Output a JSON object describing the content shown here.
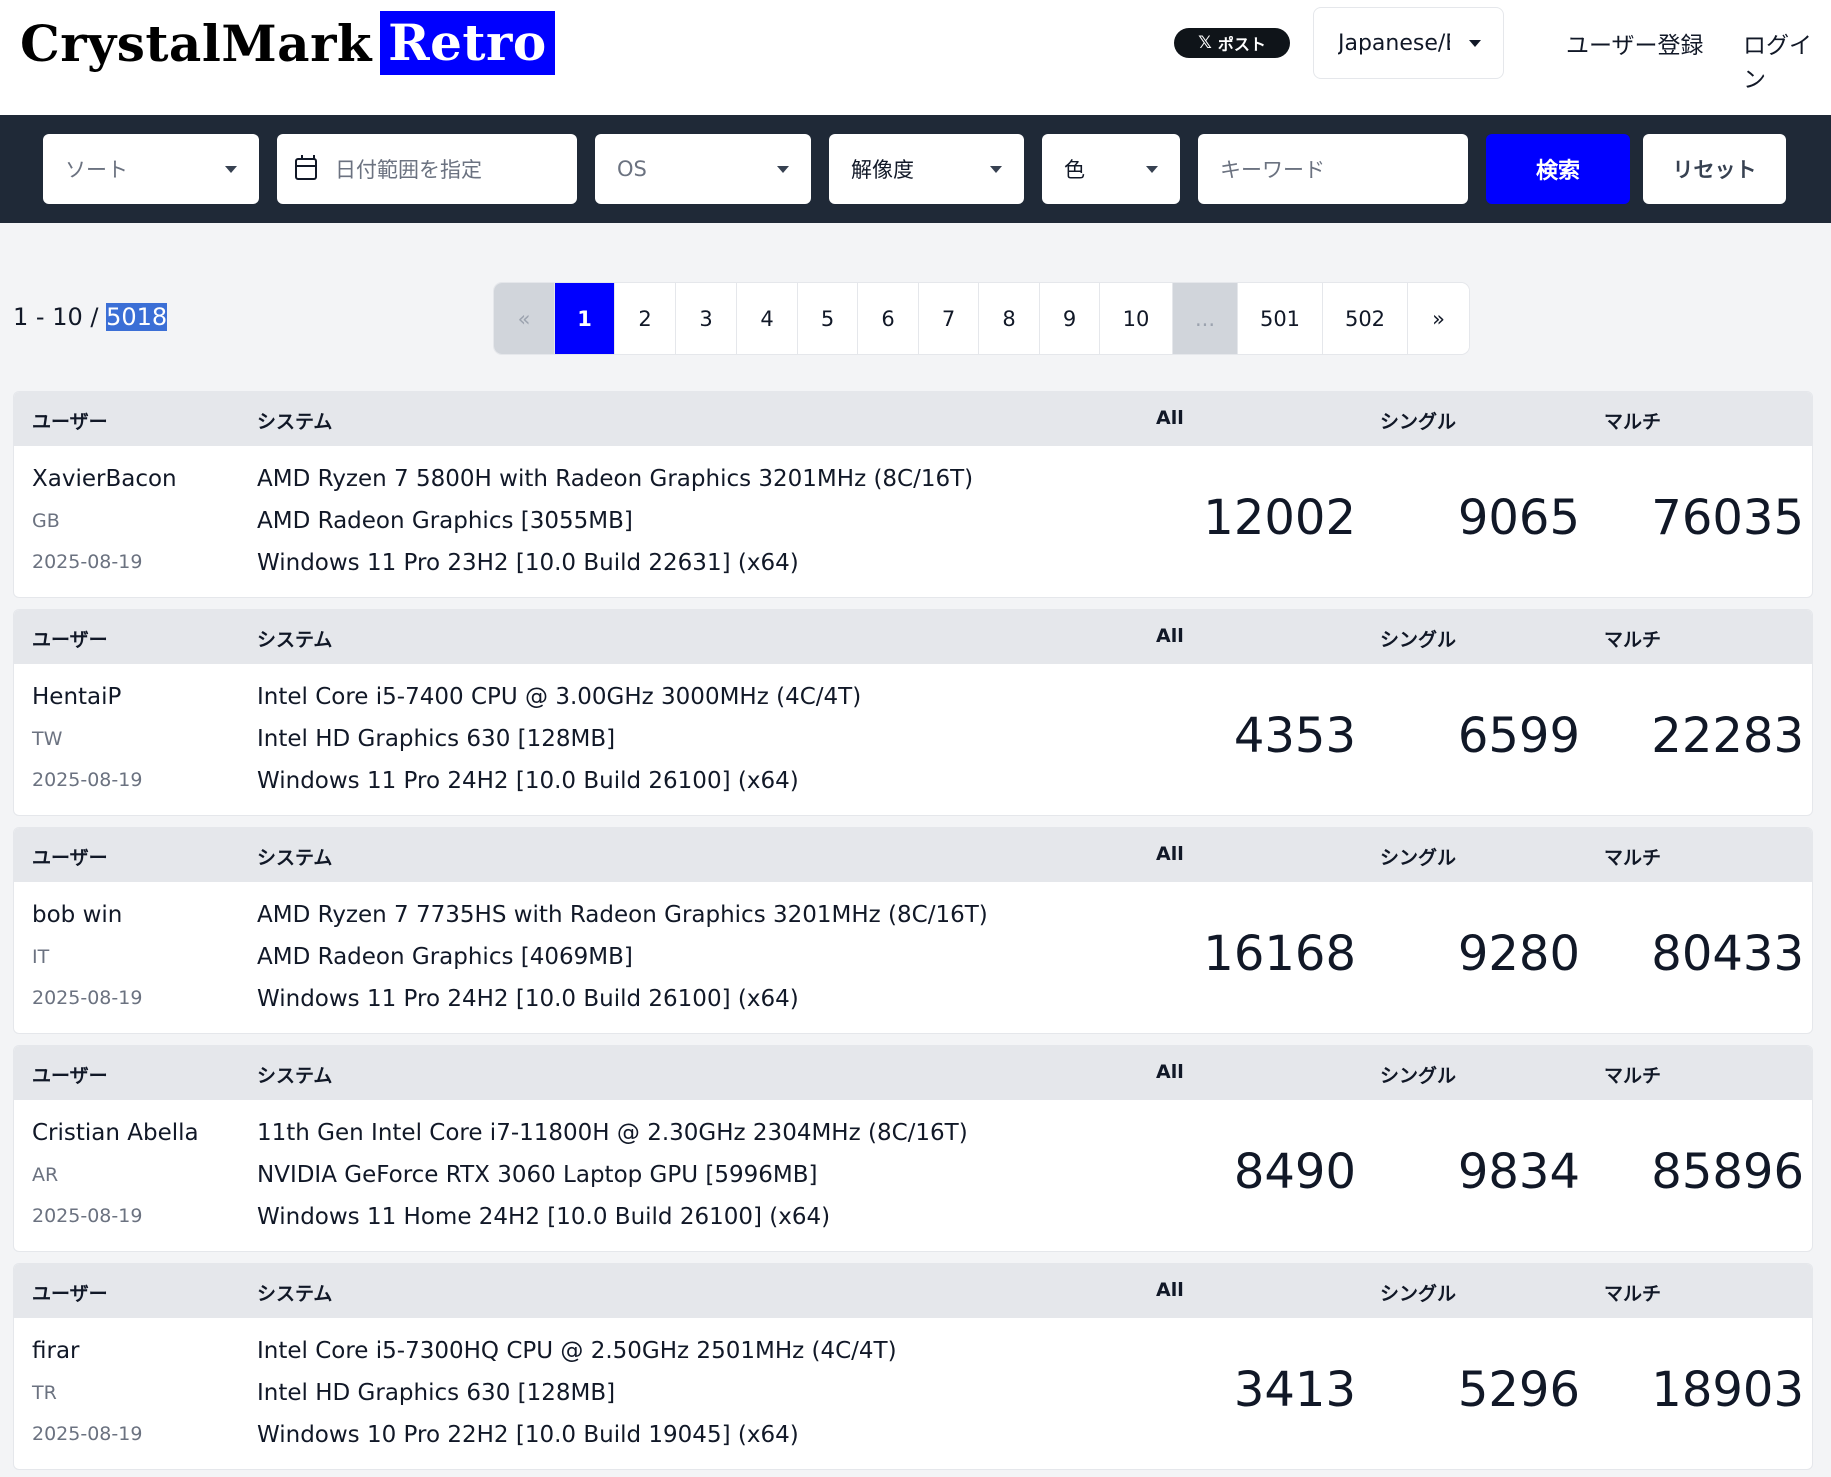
{
  "header": {
    "logo_part1": "CrystalMark",
    "logo_part2": "Retro",
    "x_post_icon": "x-icon",
    "x_post_label": "ポスト",
    "language": "Japanese/English",
    "register": "ユーザー登録",
    "login": "ログイン"
  },
  "filters": {
    "sort": "ソート",
    "date_range": "日付範囲を指定",
    "os": "OS",
    "resolution": "解像度",
    "color": "色",
    "keyword_placeholder": "キーワード",
    "search": "検索",
    "reset": "リセット"
  },
  "results": {
    "range": "1 - 10 / ",
    "total": "5018"
  },
  "pagination": {
    "prev": "«",
    "pages": [
      "1",
      "2",
      "3",
      "4",
      "5",
      "6",
      "7",
      "8",
      "9",
      "10"
    ],
    "ellipsis": "...",
    "last_pages": [
      "501",
      "502"
    ],
    "next": "»",
    "current": "1"
  },
  "columns": {
    "user": "ユーザー",
    "system": "システム",
    "all": "All",
    "single": "シングル",
    "multi": "マルチ"
  },
  "entries": [
    {
      "user": "XavierBacon",
      "country": "GB",
      "date": "2025-08-19",
      "cpu": "AMD Ryzen 7 5800H with Radeon Graphics 3201MHz (8C/16T)",
      "gpu": "AMD Radeon Graphics [3055MB]",
      "os": "Windows 11 Pro 23H2 [10.0 Build 22631] (x64)",
      "all": "12002",
      "single": "9065",
      "multi": "76035"
    },
    {
      "user": "HentaiP",
      "country": "TW",
      "date": "2025-08-19",
      "cpu": "Intel Core i5-7400 CPU @ 3.00GHz 3000MHz (4C/4T)",
      "gpu": "Intel HD Graphics 630 [128MB]",
      "os": "Windows 11 Pro 24H2 [10.0 Build 26100] (x64)",
      "all": "4353",
      "single": "6599",
      "multi": "22283"
    },
    {
      "user": "bob win",
      "country": "IT",
      "date": "2025-08-19",
      "cpu": "AMD Ryzen 7 7735HS with Radeon Graphics 3201MHz (8C/16T)",
      "gpu": "AMD Radeon Graphics [4069MB]",
      "os": "Windows 11 Pro 24H2 [10.0 Build 26100] (x64)",
      "all": "16168",
      "single": "9280",
      "multi": "80433"
    },
    {
      "user": "Cristian Abella",
      "country": "AR",
      "date": "2025-08-19",
      "cpu": "11th Gen Intel Core i7-11800H @ 2.30GHz 2304MHz (8C/16T)",
      "gpu": "NVIDIA GeForce RTX 3060 Laptop GPU [5996MB]",
      "os": "Windows 11 Home 24H2 [10.0 Build 26100] (x64)",
      "all": "8490",
      "single": "9834",
      "multi": "85896"
    },
    {
      "user": "firar",
      "country": "TR",
      "date": "2025-08-19",
      "cpu": "Intel Core i5-7300HQ CPU @ 2.50GHz 2501MHz (4C/4T)",
      "gpu": "Intel HD Graphics 630 [128MB]",
      "os": "Windows 10 Pro 22H2 [10.0 Build 19045] (x64)",
      "all": "3413",
      "single": "5296",
      "multi": "18903"
    }
  ]
}
